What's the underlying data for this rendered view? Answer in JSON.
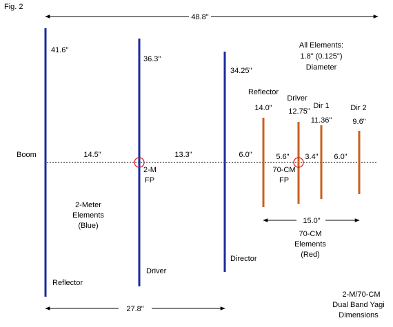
{
  "figure_label": "Fig. 2",
  "colors": {
    "two_meter": "#1a2a9e",
    "seventy_cm": "#c8601e",
    "feedpoint": "#e01010",
    "line": "#000000"
  },
  "dimensions": {
    "top_overall": "48.8\"",
    "bottom_two_meter": "27.8\"",
    "seventy_cm_span": "15.0\""
  },
  "two_meter": {
    "elements": [
      {
        "role": "Reflector",
        "length": "41.6\""
      },
      {
        "role": "Driver",
        "length": "36.3\""
      },
      {
        "role": "Director",
        "length": "34.25\""
      }
    ],
    "spacings": [
      "14.5\"",
      "13.3\""
    ],
    "feedpoint": [
      "2-M",
      "FP"
    ],
    "group_label": [
      "2-Meter",
      "Elements",
      "(Blue)"
    ]
  },
  "seventy_cm": {
    "elements": [
      {
        "role": "Reflector",
        "length": "14.0\""
      },
      {
        "role": "Driver",
        "length": "12.75\""
      },
      {
        "role": "Dir 1",
        "length": "11.36\""
      },
      {
        "role": "Dir 2",
        "length": "9.6\""
      }
    ],
    "spacings": [
      "5.6\"",
      "3.4\"",
      "6.0\""
    ],
    "feedpoint": [
      "70-CM",
      "FP"
    ],
    "group_label": [
      "70-CM",
      "Elements",
      "(Red)"
    ]
  },
  "between_spacing": "6.0\"",
  "boom_label": "Boom",
  "diameter_note": [
    "All Elements:",
    "1.8\" (0.125\")",
    "Diameter"
  ],
  "caption": [
    "2-M/70-CM",
    "Dual Band Yagi",
    "Dimensions"
  ]
}
